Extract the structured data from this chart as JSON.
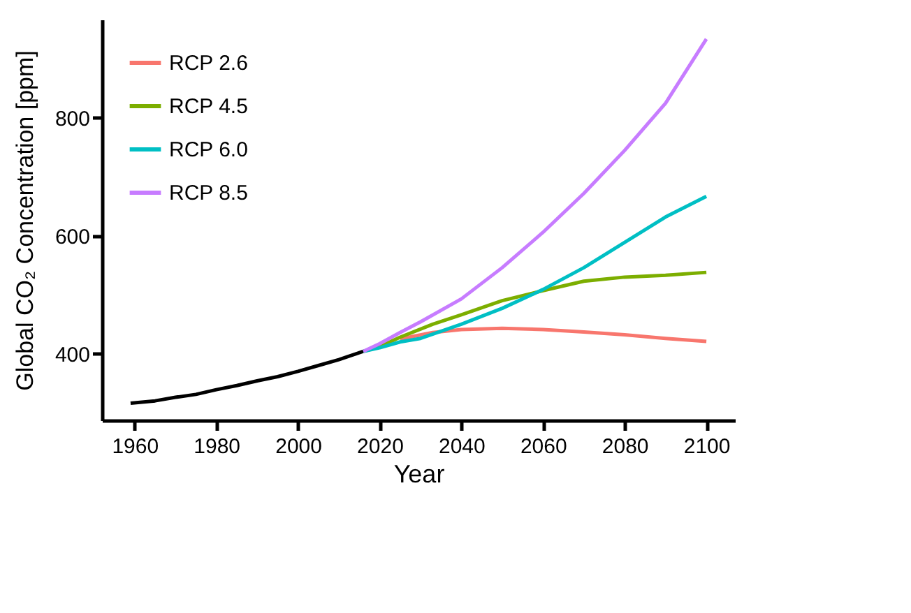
{
  "chart_data": {
    "type": "line",
    "xlabel": "Year",
    "ylabel": "Global CO₂ Concentration [ppm]",
    "xlim": [
      1952,
      2107
    ],
    "xticks": [
      1960,
      1980,
      2000,
      2020,
      2040,
      2060,
      2080,
      2100
    ],
    "ylim": [
      287,
      967
    ],
    "yticks": [
      400,
      600,
      800
    ],
    "legend": "top left",
    "series": [
      {
        "color": "#000000",
        "x": [
          1959,
          1965,
          1970,
          1975,
          1980,
          1985,
          1990,
          1995,
          2000,
          2005,
          2010,
          2016
        ],
        "values": [
          316,
          320,
          326,
          331,
          339,
          346,
          354,
          361,
          370,
          380,
          390,
          404
        ]
      },
      {
        "name": "RCP 2.6",
        "color": "#f8766d",
        "x": [
          2025,
          2033,
          2040,
          2050,
          2060,
          2070,
          2080,
          2090,
          2100
        ],
        "values": [
          425,
          436,
          441,
          443,
          441,
          437,
          432,
          426,
          421
        ]
      },
      {
        "name": "RCP 4.5",
        "color": "#7cae00",
        "x": [
          2016,
          2020,
          2025,
          2033,
          2040,
          2050,
          2060,
          2070,
          2080,
          2090,
          2100
        ],
        "values": [
          404,
          412,
          428,
          450,
          466,
          490,
          507,
          523,
          530,
          533,
          538
        ]
      },
      {
        "name": "RCP 6.0",
        "color": "#00bfc4",
        "x": [
          2016,
          2020,
          2025,
          2030,
          2040,
          2050,
          2060,
          2070,
          2080,
          2090,
          2100
        ],
        "values": [
          404,
          410,
          420,
          426,
          450,
          477,
          509,
          546,
          589,
          632,
          667
        ]
      },
      {
        "name": "RCP 8.5",
        "color": "#c77cff",
        "x": [
          2016,
          2020,
          2025,
          2030,
          2040,
          2050,
          2060,
          2070,
          2080,
          2090,
          2100
        ],
        "values": [
          404,
          417,
          436,
          454,
          493,
          546,
          606,
          672,
          745,
          825,
          934
        ]
      }
    ]
  }
}
